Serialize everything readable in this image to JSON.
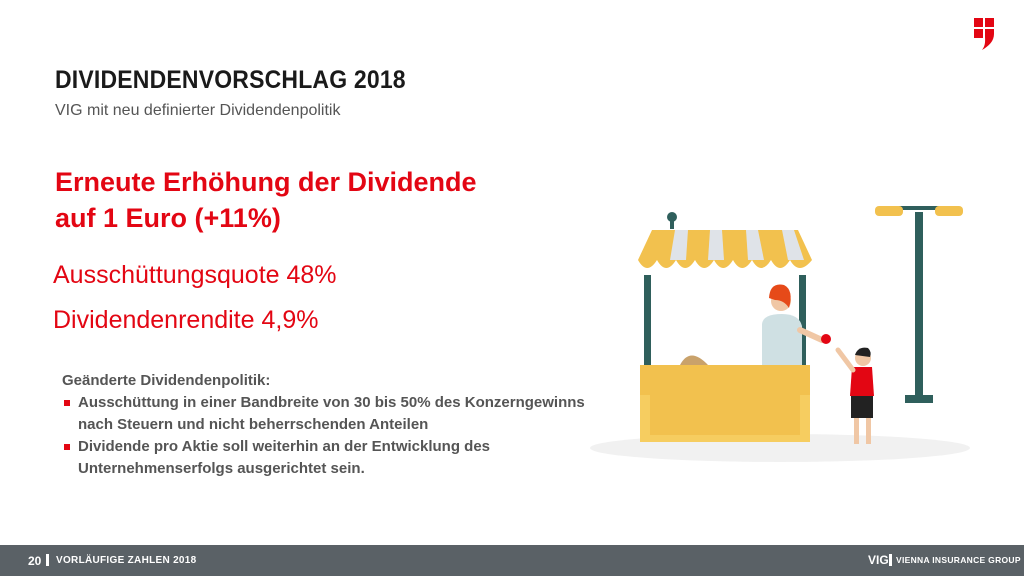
{
  "slide": {
    "title": "DIVIDENDENVORSCHLAG 2018",
    "subtitle": "VIG mit neu definierter Dividendenpolitik",
    "headline_line1": "Erneute Erhöhung der Dividende",
    "headline_line2": "auf 1 Euro (+11%)",
    "metric1": "Ausschüttungsquote 48%",
    "metric2": "Dividendenrendite 4,9%",
    "policy": {
      "heading": "Geänderte Dividendenpolitik:",
      "bullets": [
        "Ausschüttung in einer Bandbreite von 30 bis 50% des Konzerngewinns nach Steuern und nicht beherrschenden Anteilen",
        "Dividende pro Aktie soll weiterhin an der Entwicklung des Unternehmenserfolgs ausgerichtet sein."
      ]
    }
  },
  "footer": {
    "page_number": "20",
    "label": "VORLÄUFIGE ZAHLEN 2018",
    "brand_short": "VIG",
    "brand_full": "VIENNA INSURANCE GROUP"
  },
  "colors": {
    "accent": "#e30613",
    "footer_bg": "#5a6166",
    "stall_yellow": "#f2c14e",
    "stall_post": "#2f5f5c"
  },
  "icons": [
    "vig-logo-icon",
    "market-stall-illustration"
  ]
}
